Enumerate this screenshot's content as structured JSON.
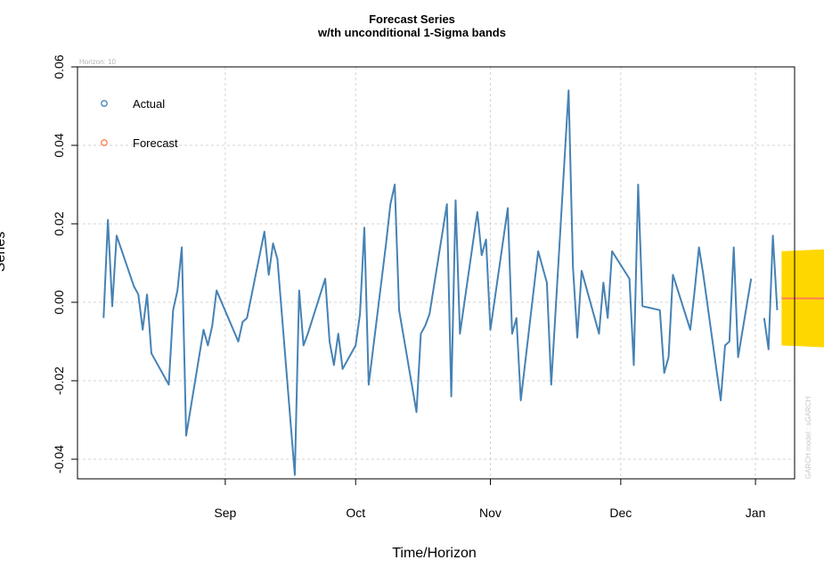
{
  "chart_data": {
    "type": "line",
    "title": "Forecast Series",
    "subtitle": "w/th unconditional 1-Sigma bands",
    "xlabel": "Time/Horizon",
    "ylabel": "Series",
    "horizon_note": "Horizon: 10",
    "model_note": "GARCH model : sGARCH",
    "ylim": [
      -0.045,
      0.06
    ],
    "yticks": [
      "-0.04",
      "-0.02",
      "0.00",
      "0.02",
      "0.04",
      "0.06"
    ],
    "ytick_values": [
      -0.04,
      -0.02,
      0.0,
      0.02,
      0.04,
      0.06
    ],
    "xlim": [
      "2012-07-29",
      "2013-01-10"
    ],
    "xticks": [
      {
        "label": "Sep",
        "date": "2012-09-01"
      },
      {
        "label": "Oct",
        "date": "2012-10-01"
      },
      {
        "label": "Nov",
        "date": "2012-11-01"
      },
      {
        "label": "Dec",
        "date": "2012-12-01"
      },
      {
        "label": "Jan",
        "date": "2013-01-01"
      }
    ],
    "grid": true,
    "legend": {
      "position": "top-left",
      "entries": [
        "Actual",
        "Forecast"
      ]
    },
    "colors": {
      "actual": "#4682B4",
      "forecast": "#FF7F50",
      "band": "#FFD700",
      "grid": "#D3D3D3"
    },
    "actual": {
      "name": "Actual",
      "x": [
        "2012-08-04",
        "2012-08-05",
        "2012-08-06",
        "2012-08-07",
        "2012-08-11",
        "2012-08-12",
        "2012-08-13",
        "2012-08-14",
        "2012-08-15",
        "2012-08-19",
        "2012-08-20",
        "2012-08-21",
        "2012-08-22",
        "2012-08-23",
        "2012-08-27",
        "2012-08-28",
        "2012-08-29",
        "2012-08-30",
        "2012-09-04",
        "2012-09-05",
        "2012-09-06",
        "2012-09-10",
        "2012-09-11",
        "2012-09-12",
        "2012-09-13",
        "2012-09-17",
        "2012-09-18",
        "2012-09-19",
        "2012-09-20",
        "2012-09-24",
        "2012-09-25",
        "2012-09-26",
        "2012-09-27",
        "2012-09-28",
        "2012-10-01",
        "2012-10-02",
        "2012-10-03",
        "2012-10-04",
        "2012-10-08",
        "2012-10-09",
        "2012-10-10",
        "2012-10-11",
        "2012-10-15",
        "2012-10-16",
        "2012-10-17",
        "2012-10-18",
        "2012-10-22",
        "2012-10-23",
        "2012-10-24",
        "2012-10-25",
        "2012-10-29",
        "2012-10-30",
        "2012-10-31",
        "2012-11-01",
        "2012-11-05",
        "2012-11-06",
        "2012-11-07",
        "2012-11-08",
        "2012-11-12",
        "2012-11-13",
        "2012-11-14",
        "2012-11-15",
        "2012-11-19",
        "2012-11-20",
        "2012-11-21",
        "2012-11-22",
        "2012-11-26",
        "2012-11-27",
        "2012-11-28",
        "2012-11-29",
        "2012-12-03",
        "2012-12-04",
        "2012-12-05",
        "2012-12-06",
        "2012-12-10",
        "2012-12-11",
        "2012-12-12",
        "2012-12-13",
        "2012-12-17",
        "2012-12-18",
        "2012-12-19",
        "2012-12-20",
        "2012-12-24",
        "2012-12-25",
        "2012-12-26",
        "2012-12-27",
        "2012-12-28",
        "2012-12-31"
      ],
      "y": [
        -0.004,
        0.021,
        -0.001,
        0.017,
        0.004,
        0.002,
        -0.007,
        0.002,
        -0.013,
        -0.021,
        -0.002,
        0.003,
        0.014,
        -0.034,
        -0.007,
        -0.011,
        -0.006,
        0.003,
        -0.01,
        -0.005,
        -0.004,
        0.018,
        0.007,
        0.015,
        0.011,
        -0.044,
        0.003,
        -0.011,
        -0.008,
        0.006,
        -0.01,
        -0.016,
        -0.008,
        -0.017,
        -0.011,
        -0.003,
        0.019,
        -0.021,
        0.015,
        0.025,
        0.03,
        -0.002,
        -0.028,
        -0.008,
        -0.006,
        -0.003,
        0.025,
        -0.024,
        0.026,
        -0.008,
        0.023,
        0.012,
        0.016,
        -0.007,
        0.024,
        -0.008,
        -0.004,
        -0.025,
        0.013,
        0.009,
        0.005,
        -0.021,
        0.054,
        0.009,
        -0.009,
        0.008,
        -0.008,
        0.005,
        -0.004,
        0.013,
        0.006,
        -0.016,
        0.03,
        -0.001,
        -0.002,
        -0.018,
        -0.014,
        0.007,
        -0.007,
        0.003,
        0.014,
        0.007,
        -0.025,
        -0.011,
        -0.01,
        0.014,
        -0.014,
        0.006
      ]
    },
    "actual_tail": {
      "x": [
        "2013-01-03",
        "2013-01-04",
        "2013-01-05",
        "2013-01-06"
      ],
      "y": [
        -0.004,
        -0.012,
        0.017,
        -0.002
      ]
    },
    "forecast": {
      "name": "Forecast",
      "x": [
        "2013-01-07",
        "2013-01-17"
      ],
      "y": [
        0.001,
        0.001
      ],
      "upper": [
        0.013,
        0.0135
      ],
      "lower": [
        -0.011,
        -0.0115
      ]
    }
  }
}
